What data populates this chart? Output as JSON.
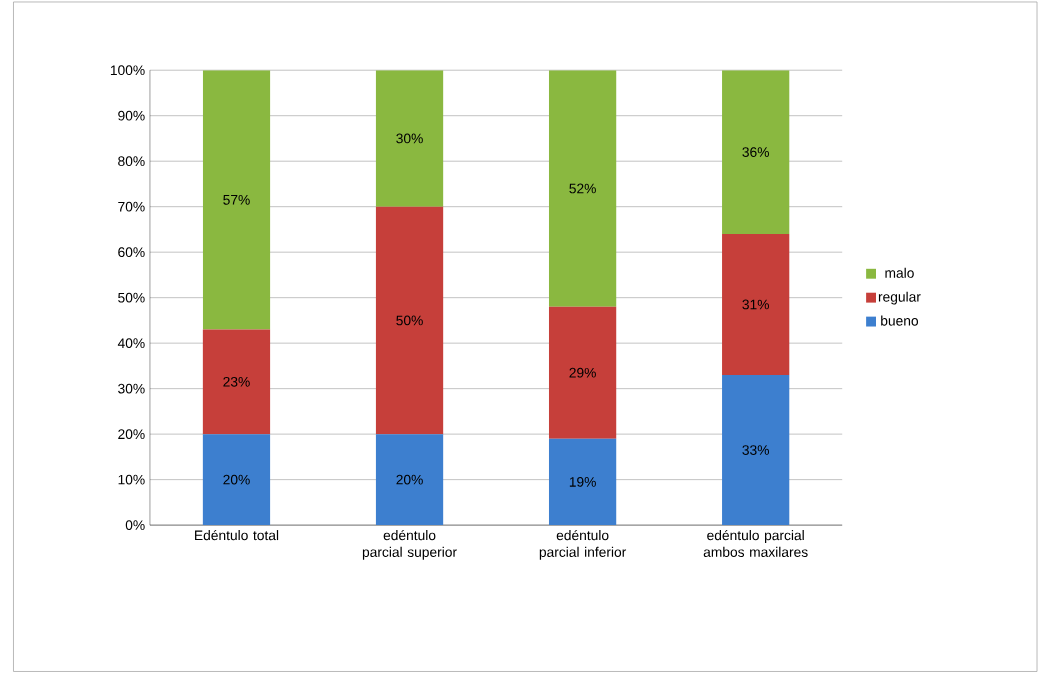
{
  "chart_data": {
    "type": "bar",
    "stacked": true,
    "categories": [
      "Edéntulo total",
      "edéntulo parcial superior",
      "edéntulo parcial inferior",
      "edéntulo parcial ambos maxilares"
    ],
    "series": [
      {
        "name": "bueno",
        "color": "#3d7fcf",
        "values": [
          20,
          20,
          19,
          33
        ],
        "value_labels": [
          "20%",
          "20%",
          "19%",
          "33%"
        ]
      },
      {
        "name": "regular",
        "color": "#c63f3a",
        "values": [
          23,
          50,
          29,
          31
        ],
        "value_labels": [
          "23%",
          "50%",
          "29%",
          "31%"
        ]
      },
      {
        "name": "malo",
        "color": "#8ab840",
        "values": [
          57,
          30,
          52,
          36
        ],
        "value_labels": [
          "57%",
          "30%",
          "52%",
          "36%"
        ]
      }
    ],
    "ylim": [
      0,
      100
    ],
    "yticks": [
      {
        "value": 0,
        "label": "0%"
      },
      {
        "value": 10,
        "label": "10%"
      },
      {
        "value": 20,
        "label": "20%"
      },
      {
        "value": 30,
        "label": "30%"
      },
      {
        "value": 40,
        "label": "40%"
      },
      {
        "value": 50,
        "label": "50%"
      },
      {
        "value": 60,
        "label": "60%"
      },
      {
        "value": 70,
        "label": "70%"
      },
      {
        "value": 80,
        "label": "80%"
      },
      {
        "value": 90,
        "label": "90%"
      },
      {
        "value": 100,
        "label": "100%"
      }
    ],
    "grid": "y",
    "legend": "right"
  }
}
